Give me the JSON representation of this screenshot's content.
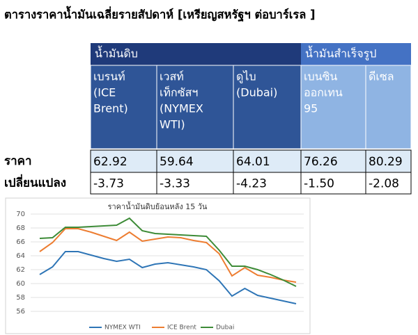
{
  "title": "ตารางราคาน้ำมันเฉลี่ยรายสัปดาห์ [เหรียญสหรัฐฯ ต่อบาร์เรล ]",
  "table": {
    "groups": [
      "น้ำมันดิบ",
      "น้ำมันสำเร็จรูป"
    ],
    "columns": [
      [
        "เบรนท์",
        "(ICE",
        "Brent)"
      ],
      [
        "เวสท์",
        "เท็กซัสฯ",
        "(NYMEX",
        "WTI)"
      ],
      [
        "ดูไบ",
        "(Dubai)"
      ],
      [
        "เบนซิน",
        "ออกเทน",
        "95"
      ],
      [
        "ดีเซล"
      ]
    ],
    "rows": [
      {
        "label": "ราคา",
        "cells": [
          "62.92",
          "59.64",
          "64.01",
          "76.26",
          "80.29"
        ]
      },
      {
        "label": "เปลี่ยนแปลง",
        "cells": [
          "-3.73",
          "-3.33",
          "-4.23",
          "-1.50",
          "-2.08"
        ]
      }
    ]
  },
  "chart_data": {
    "type": "line",
    "title": "ราคาน้ำมันดิบย้อนหลัง 15 วัน",
    "categories": [
      null,
      null,
      null,
      null,
      null,
      null,
      null,
      null,
      null,
      null,
      null,
      null,
      null,
      null,
      null,
      null,
      null,
      null,
      null,
      null,
      null
    ],
    "series": [
      {
        "name": "NYMEX WTI",
        "color": "#2e75b6",
        "values": [
          61.3,
          62.4,
          64.6,
          64.6,
          64.1,
          63.6,
          63.2,
          63.5,
          62.3,
          62.8,
          63.0,
          62.7,
          62.4,
          62.0,
          60.4,
          58.2,
          59.3,
          58.3,
          57.9,
          57.5,
          57.1
        ]
      },
      {
        "name": "ICE Brent",
        "color": "#ed7d31",
        "values": [
          64.6,
          65.9,
          67.9,
          67.9,
          67.4,
          66.8,
          66.2,
          67.4,
          66.1,
          66.4,
          66.7,
          66.6,
          66.2,
          65.9,
          64.3,
          61.1,
          62.3,
          61.2,
          60.9,
          60.5,
          60.2
        ]
      },
      {
        "name": "Dubai",
        "color": "#3d8b37",
        "values": [
          66.5,
          66.6,
          68.1,
          68.1,
          68.2,
          68.3,
          68.4,
          69.4,
          67.6,
          67.2,
          67.1,
          67.0,
          66.9,
          66.8,
          64.8,
          62.5,
          62.5,
          62.0,
          61.3,
          60.5,
          59.6
        ]
      }
    ],
    "ylim": [
      55,
      70
    ],
    "yticks": [
      56,
      58,
      60,
      62,
      64,
      66,
      68,
      70
    ],
    "grid": true
  }
}
